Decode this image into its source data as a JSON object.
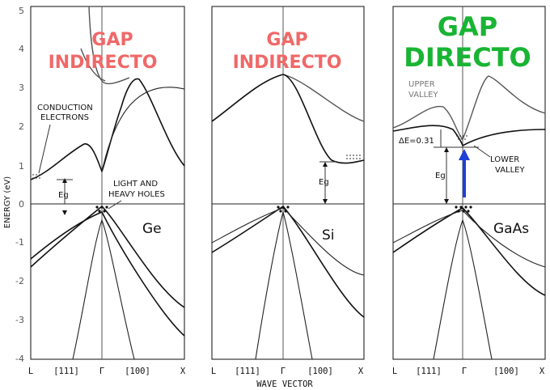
{
  "panels": [
    {
      "material": "Ge",
      "gap_line1": "GAP",
      "gap_line2": "INDIRECTO",
      "gap_type": "indirect"
    },
    {
      "material": "Si",
      "gap_line1": "GAP",
      "gap_line2": "INDIRECTO",
      "gap_type": "indirect"
    },
    {
      "material": "GaAs",
      "gap_line1": "GAP",
      "gap_line2": "DIRECTO",
      "gap_type": "direct"
    }
  ],
  "y_axis": {
    "title": "ENERGY (eV)",
    "ticks": [
      "5",
      "4",
      "3",
      "2",
      "1",
      "0",
      "-1",
      "-2",
      "-3",
      "-4"
    ]
  },
  "x_axis": {
    "title": "WAVE VECTOR",
    "ticks": [
      "L",
      "[111]",
      "Γ",
      "[100]",
      "X"
    ]
  },
  "annotations": {
    "conduction_electrons_1": "CONDUCTION",
    "conduction_electrons_2": "ELECTRONS",
    "light_heavy_holes_1": "LIGHT AND",
    "light_heavy_holes_2": "HEAVY HOLES",
    "eg": "Eg",
    "upper_valley_1": "UPPER",
    "upper_valley_2": "VALLEY",
    "lower_valley_1": "LOWER",
    "lower_valley_2": "VALLEY",
    "delta_e": "ΔE=0.31"
  },
  "colors": {
    "indirect_title": "#f06868",
    "direct_title": "#19b434",
    "direct_arrow": "#1f3fd6",
    "lines": "#111111"
  }
}
